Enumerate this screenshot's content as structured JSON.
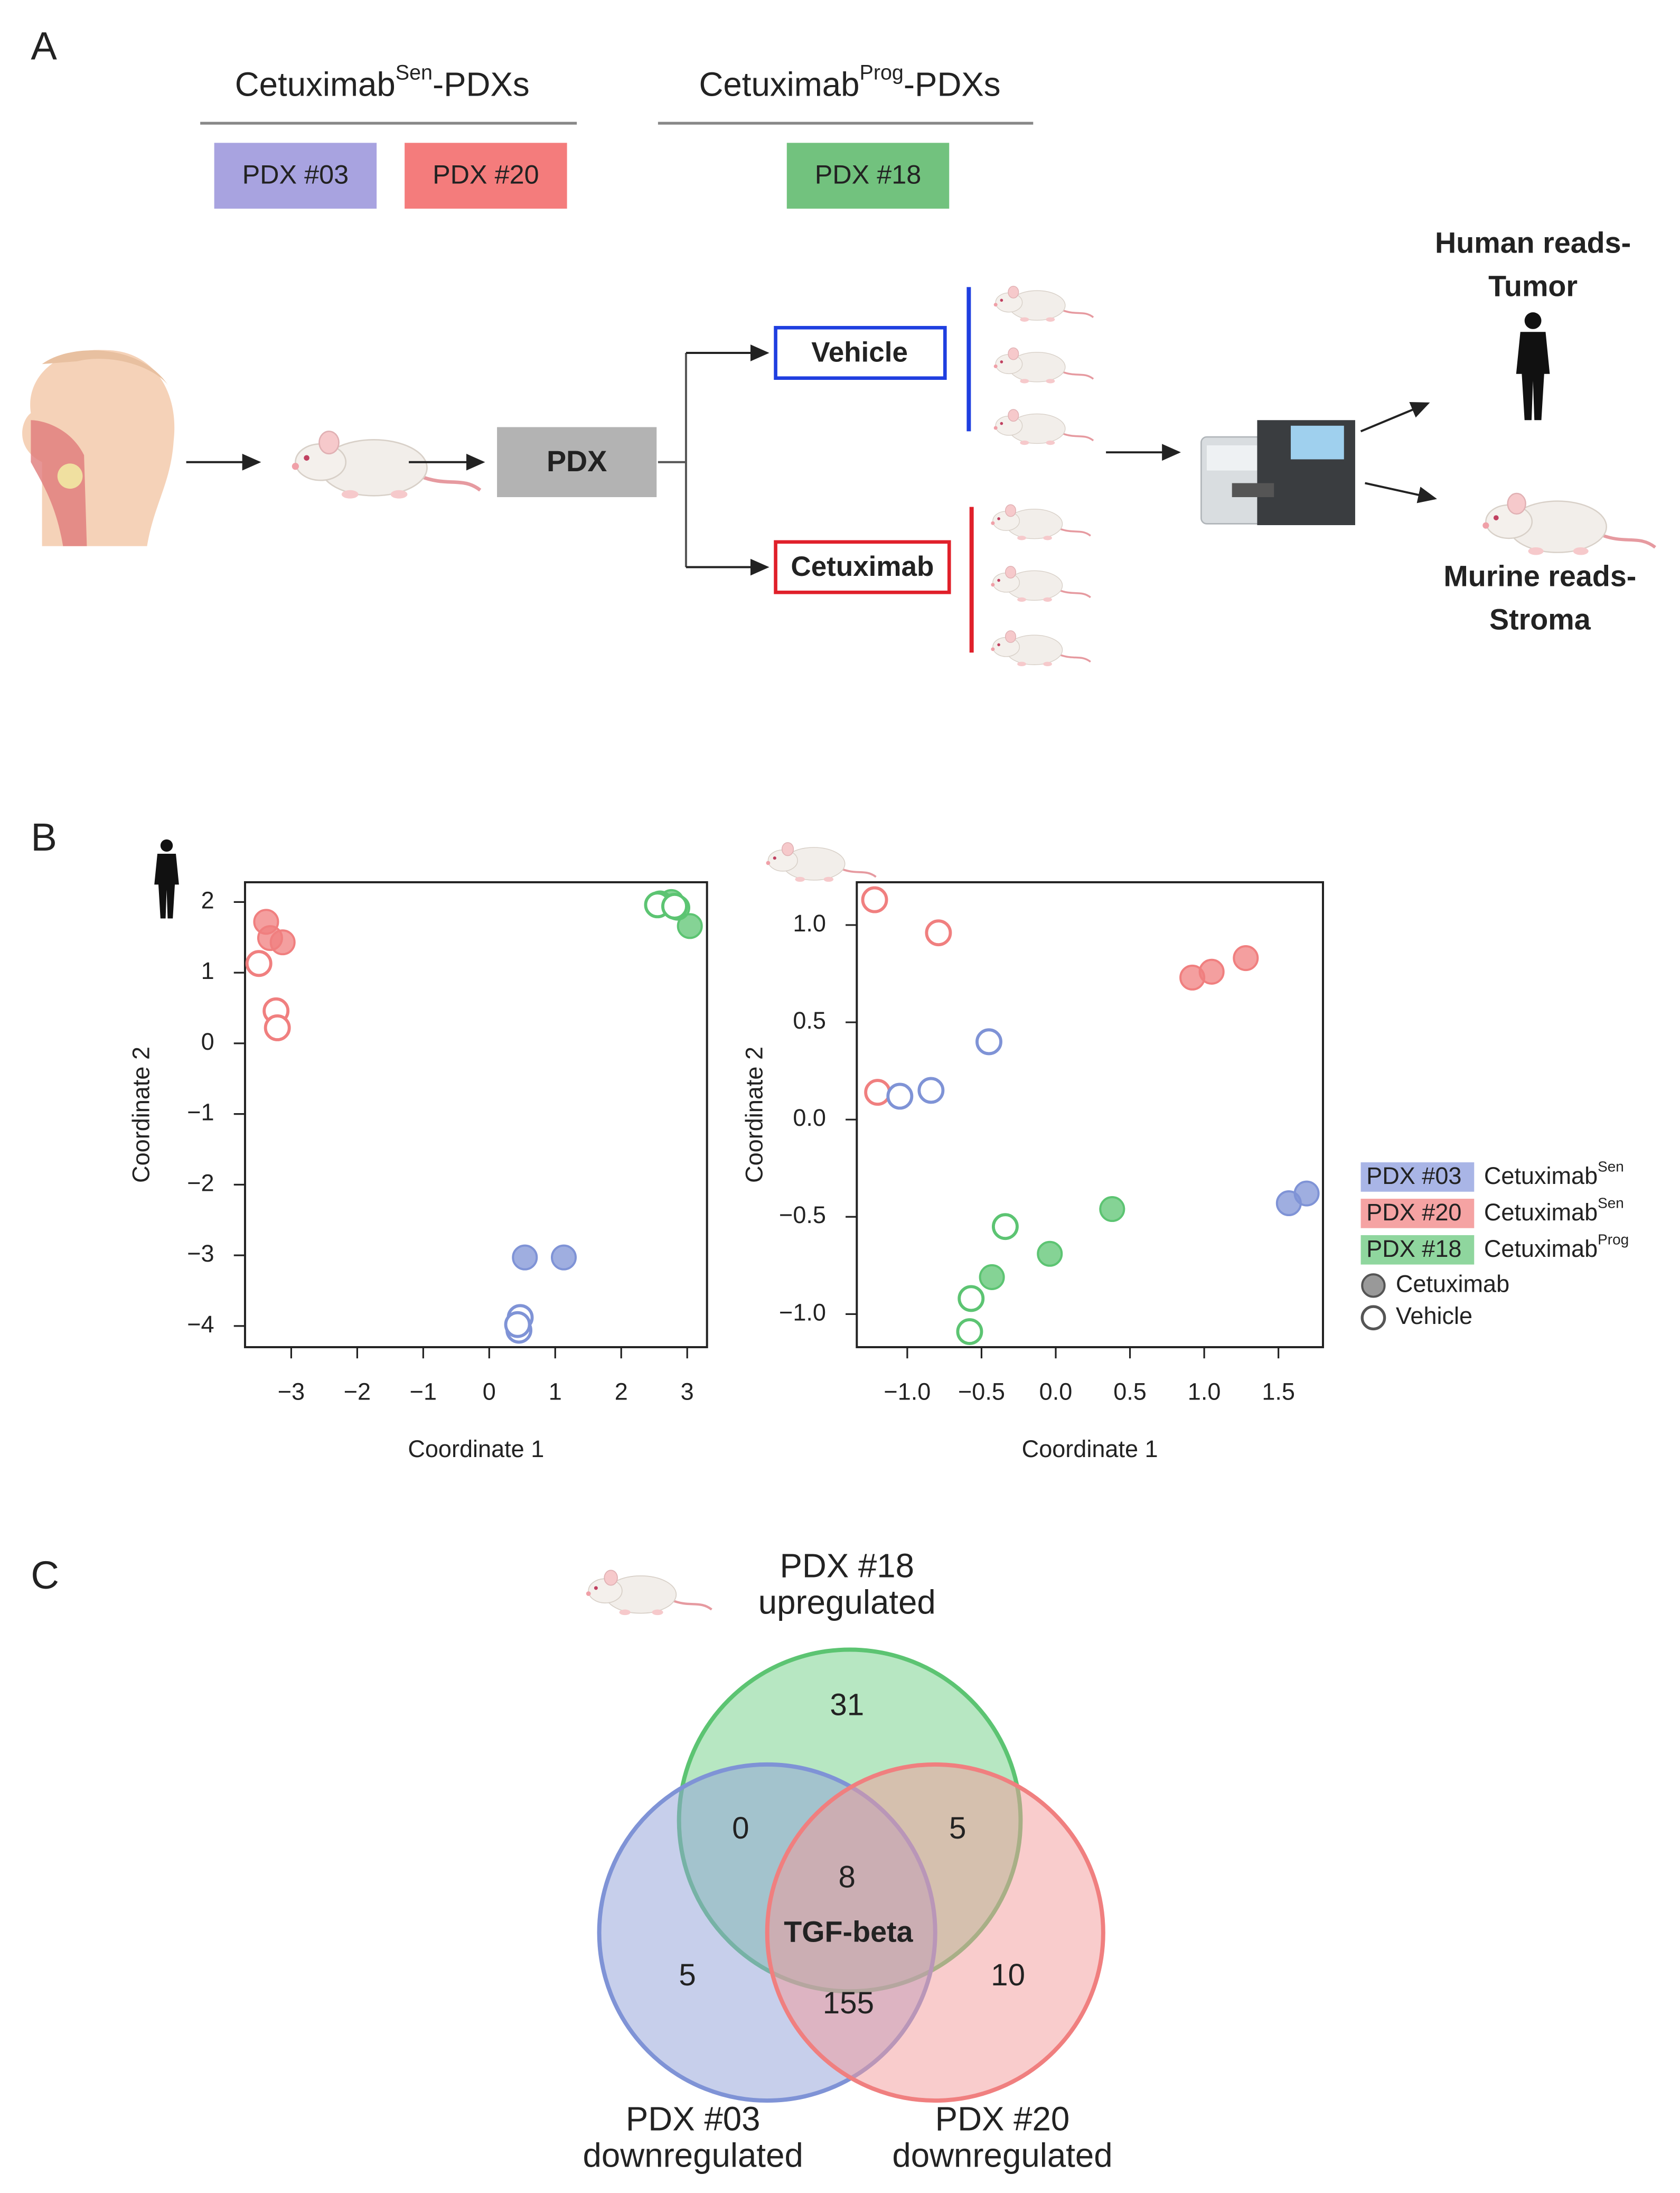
{
  "panel_a": {
    "label": "A",
    "groups": [
      {
        "name": "Cetuximab",
        "sup": "Sen",
        "suffix": "-PDXs",
        "members": [
          "PDX #03",
          "PDX #20"
        ]
      },
      {
        "name": "Cetuximab",
        "sup": "Prog",
        "suffix": "-PDXs",
        "members": [
          "PDX #18"
        ]
      }
    ],
    "pdx": "PDX",
    "arms": [
      "Vehicle",
      "Cetuximab"
    ],
    "human": [
      "Human reads-",
      "Tumor"
    ],
    "murine": [
      "Murine reads-",
      "Stroma"
    ]
  },
  "panel_b": {
    "label": "B"
  },
  "chart_data": [
    {
      "type": "scatter",
      "x_label": "Coordinate 1",
      "y_label": "Coordinate 2",
      "xlim": [
        -3.7,
        3.3
      ],
      "ylim": [
        -4.3,
        2.28
      ],
      "xticks": [
        {
          "value": -3,
          "label": "−3"
        },
        {
          "value": -2,
          "label": "−2"
        },
        {
          "value": -1,
          "label": "−1"
        },
        0,
        1,
        2,
        3
      ],
      "yticks": [
        {
          "value": -4,
          "label": "−4"
        },
        {
          "value": -3,
          "label": "−3"
        },
        {
          "value": -2,
          "label": "−2"
        },
        {
          "value": -1,
          "label": "−1"
        },
        0,
        1,
        2
      ],
      "series": [
        {
          "color": "#f07f7f",
          "filled": true,
          "x": [
            -3.38,
            -3.32,
            -3.13
          ],
          "y": [
            1.72,
            1.49,
            1.43
          ]
        },
        {
          "color": "#f07f7f",
          "filled": false,
          "x": [
            -3.49,
            -3.23,
            -3.21
          ],
          "y": [
            1.13,
            0.46,
            0.22
          ]
        },
        {
          "color": "#5cc472",
          "filled": true,
          "x": [
            2.59,
            2.76,
            2.85,
            3.04
          ],
          "y": [
            1.98,
            2.0,
            1.92,
            1.66
          ]
        },
        {
          "color": "#5cc472",
          "filled": false,
          "x": [
            2.55,
            2.81
          ],
          "y": [
            1.96,
            1.94
          ]
        },
        {
          "color": "#7f93d6",
          "filled": true,
          "x": [
            0.54,
            1.13
          ],
          "y": [
            -3.03,
            -3.03
          ]
        },
        {
          "color": "#7f93d6",
          "filled": false,
          "x": [
            0.47,
            0.45,
            0.43
          ],
          "y": [
            -3.88,
            -4.06,
            -3.98
          ]
        }
      ]
    },
    {
      "type": "scatter",
      "x_label": "Coordinate 1",
      "y_label": "Coordinate 2",
      "xlim": [
        -1.34,
        1.8
      ],
      "ylim": [
        -1.17,
        1.22
      ],
      "xticks": [
        {
          "value": -1.0,
          "label": "−1.0"
        },
        {
          "value": -0.5,
          "label": "−0.5"
        },
        {
          "value": 0,
          "label": "0.0"
        },
        0.5,
        {
          "value": 1,
          "label": "1.0"
        },
        1.5
      ],
      "yticks": [
        {
          "value": -1.0,
          "label": "−1.0"
        },
        {
          "value": -0.5,
          "label": "−0.5"
        },
        {
          "value": 0,
          "label": "0.0"
        },
        0.5,
        {
          "value": 1,
          "label": "1.0"
        }
      ],
      "series": [
        {
          "color": "#f07f7f",
          "filled": false,
          "x": [
            -1.22,
            -0.79,
            -1.2
          ],
          "y": [
            1.13,
            0.96,
            0.14
          ]
        },
        {
          "color": "#f07f7f",
          "filled": true,
          "x": [
            0.92,
            1.05,
            1.28
          ],
          "y": [
            0.73,
            0.76,
            0.83
          ]
        },
        {
          "color": "#7f93d6",
          "filled": false,
          "x": [
            -1.05,
            -0.84,
            -0.45
          ],
          "y": [
            0.12,
            0.15,
            0.4
          ]
        },
        {
          "color": "#7f93d6",
          "filled": true,
          "x": [
            1.57,
            1.69
          ],
          "y": [
            -0.43,
            -0.38
          ]
        },
        {
          "color": "#5cc472",
          "filled": false,
          "x": [
            -0.34,
            -0.57,
            -0.58
          ],
          "y": [
            -0.55,
            -0.92,
            -1.09
          ]
        },
        {
          "color": "#5cc472",
          "filled": true,
          "x": [
            -0.43,
            -0.04,
            0.38
          ],
          "y": [
            -0.81,
            -0.69,
            -0.46
          ]
        }
      ]
    }
  ],
  "legend": {
    "groups": [
      {
        "label": "PDX #03",
        "text": "Cetuximab",
        "sup": "Sen",
        "color": "#a9b5e6"
      },
      {
        "label": "PDX #20",
        "text": "Cetuximab",
        "sup": "Sen",
        "color": "#f5a3a3"
      },
      {
        "label": "PDX #18",
        "text": "Cetuximab",
        "sup": "Prog",
        "color": "#8fd69e"
      }
    ],
    "markers": [
      "Cetuximab",
      "Vehicle"
    ]
  },
  "panel_c": {
    "label": "C",
    "top": [
      "PDX #18",
      "upregulated"
    ],
    "left": [
      "PDX #03",
      "downregulated"
    ],
    "right": [
      "PDX #20",
      "downregulated"
    ],
    "regions": {
      "top_only": 31,
      "top_left": 0,
      "top_right": 5,
      "all": 8,
      "left_only": 5,
      "left_right": 155,
      "right_only": 10
    },
    "center_note": "TGF-beta"
  }
}
